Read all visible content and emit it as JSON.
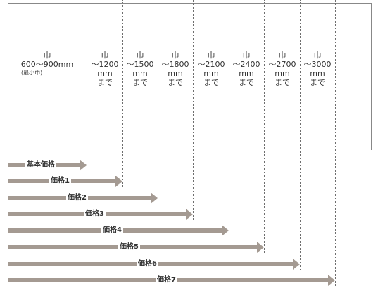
{
  "columns": [
    {
      "lines": [
        "巾",
        "600〜900mm"
      ],
      "sub": "(最小巾)"
    },
    {
      "lines": [
        "巾",
        "〜1200",
        "mm",
        "まで"
      ]
    },
    {
      "lines": [
        "巾",
        "〜1500",
        "mm",
        "まで"
      ]
    },
    {
      "lines": [
        "巾",
        "〜1800",
        "mm",
        "まで"
      ]
    },
    {
      "lines": [
        "巾",
        "〜2100",
        "mm",
        "まで"
      ]
    },
    {
      "lines": [
        "巾",
        "〜2400",
        "mm",
        "まで"
      ]
    },
    {
      "lines": [
        "巾",
        "〜2700",
        "mm",
        "まで"
      ]
    },
    {
      "lines": [
        "巾",
        "〜3000",
        "mm",
        "まで"
      ]
    }
  ],
  "arrows": [
    {
      "label": "基本価格"
    },
    {
      "label": "価格1"
    },
    {
      "label": "価格2"
    },
    {
      "label": "価格3"
    },
    {
      "label": "価格4"
    },
    {
      "label": "価格5"
    },
    {
      "label": "価格6"
    },
    {
      "label": "価格7"
    }
  ],
  "colors": {
    "arrow": "#a49a92",
    "border": "#888888",
    "text": "#333333"
  }
}
